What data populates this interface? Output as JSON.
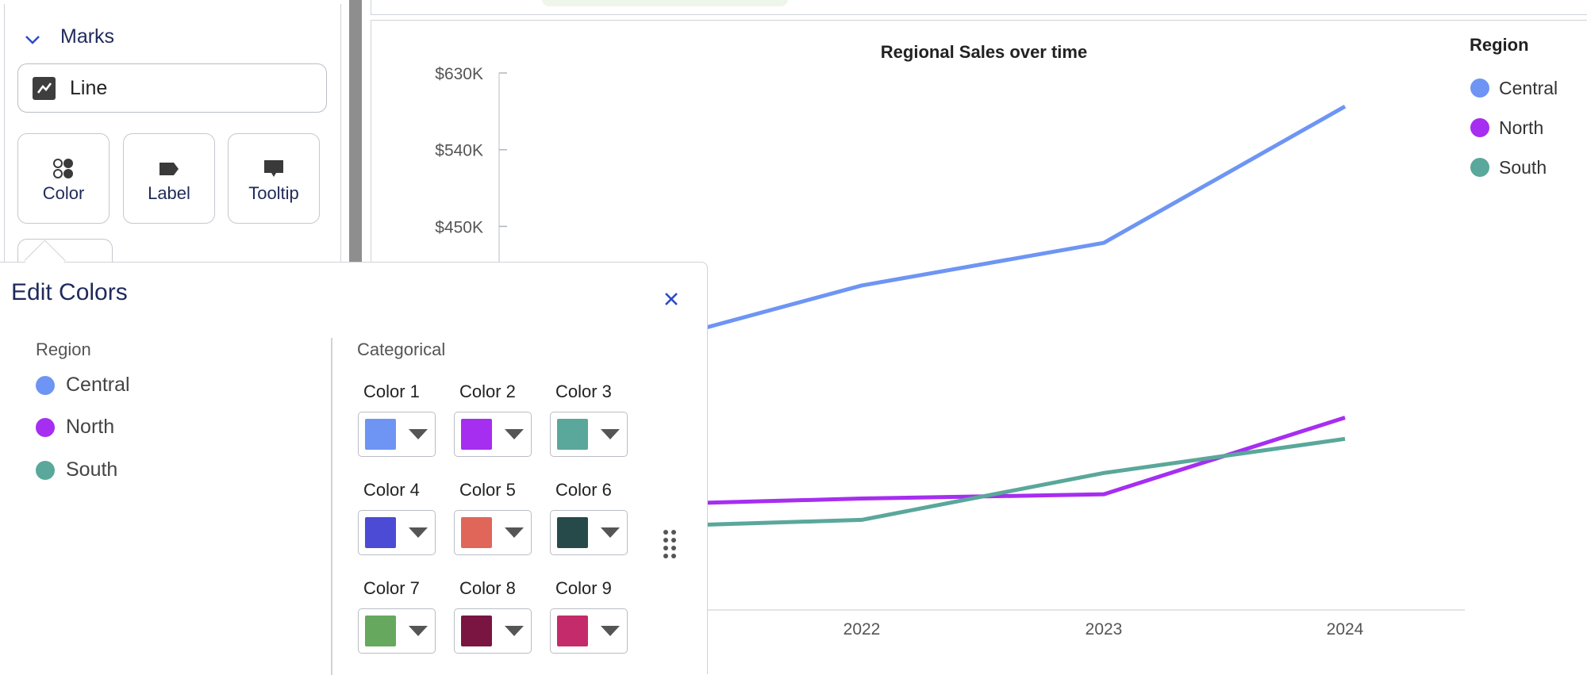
{
  "marks": {
    "title": "Marks",
    "mark_type": "Line",
    "cards": [
      {
        "label": "Color",
        "icon": "color-icon"
      },
      {
        "label": "Label",
        "icon": "label-tag-icon"
      },
      {
        "label": "Tooltip",
        "icon": "tooltip-icon"
      }
    ]
  },
  "chart_data": {
    "type": "line",
    "title": "Regional Sales over time",
    "x": [
      "2022",
      "2023",
      "2024"
    ],
    "y_ticks": [
      "$630K",
      "$540K",
      "$450K"
    ],
    "series": [
      {
        "name": "Central",
        "color": "#6e95f4",
        "values": [
          390,
          440,
          600
        ]
      },
      {
        "name": "North",
        "color": "#a62ef0",
        "values": [
          140,
          145,
          235
        ]
      },
      {
        "name": "South",
        "color": "#5aa79b",
        "values": [
          115,
          170,
          210
        ]
      }
    ],
    "ylim": [
      0,
      630
    ]
  },
  "legend": {
    "title": "Region",
    "items": [
      {
        "label": "Central",
        "color": "#6e95f4"
      },
      {
        "label": "North",
        "color": "#a62ef0"
      },
      {
        "label": "South",
        "color": "#5aa79b"
      }
    ]
  },
  "edit_colors": {
    "title": "Edit Colors",
    "region_header": "Region",
    "regions": [
      {
        "label": "Central",
        "color": "#6e95f4"
      },
      {
        "label": "North",
        "color": "#a62ef0"
      },
      {
        "label": "South",
        "color": "#5aa79b"
      }
    ],
    "palette_header": "Categorical",
    "swatches": [
      {
        "label": "Color 1",
        "color": "#6e95f4"
      },
      {
        "label": "Color 2",
        "color": "#a62ef0"
      },
      {
        "label": "Color 3",
        "color": "#5aa79b"
      },
      {
        "label": "Color 4",
        "color": "#4b4bd6"
      },
      {
        "label": "Color 5",
        "color": "#e0665a"
      },
      {
        "label": "Color 6",
        "color": "#264a4a"
      },
      {
        "label": "Color 7",
        "color": "#65a85e"
      },
      {
        "label": "Color 8",
        "color": "#7a1542"
      },
      {
        "label": "Color 9",
        "color": "#c42b6b"
      }
    ]
  }
}
